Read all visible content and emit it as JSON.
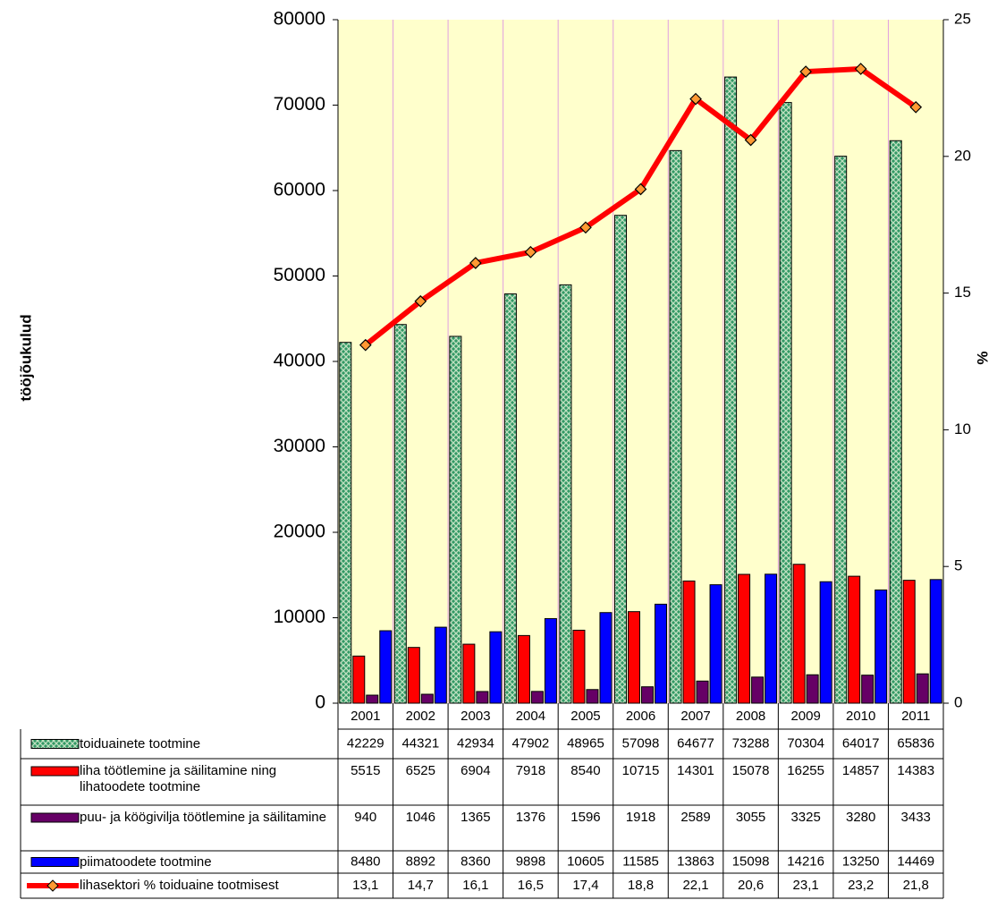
{
  "chart_data": {
    "type": "bar",
    "y_label": "tööjõukulud",
    "y2_label": "%",
    "categories": [
      "2001",
      "2002",
      "2003",
      "2004",
      "2005",
      "2006",
      "2007",
      "2008",
      "2009",
      "2010",
      "2011"
    ],
    "series": [
      {
        "name": "toiduainete tootmine",
        "color": "#339966",
        "values": [
          42229,
          44321,
          42934,
          47902,
          48965,
          57098,
          64677,
          73288,
          70304,
          64017,
          65836
        ]
      },
      {
        "name": "liha töötlemine ja säilitamine ning lihatoodete tootmine",
        "color": "#ff0000",
        "values": [
          5515,
          6525,
          6904,
          7918,
          8540,
          10715,
          14301,
          15078,
          16255,
          14857,
          14383
        ]
      },
      {
        "name": "puu- ja köögivilja töötlemine ja säilitamine",
        "color": "#660066",
        "values": [
          940,
          1046,
          1365,
          1376,
          1596,
          1918,
          2589,
          3055,
          3325,
          3280,
          3433
        ]
      },
      {
        "name": "piimatoodete tootmine",
        "color": "#0000ff",
        "values": [
          8480,
          8892,
          8360,
          9898,
          10605,
          11585,
          13863,
          15098,
          14216,
          13250,
          14469
        ]
      },
      {
        "name": "lihasektori % toiduaine tootmisest",
        "type": "line",
        "axis": "y2",
        "color": "#ff0000",
        "marker_color": "#ff9933",
        "values": [
          13.1,
          14.7,
          16.1,
          16.5,
          17.4,
          18.8,
          22.1,
          20.6,
          23.1,
          23.2,
          21.8
        ],
        "value_labels": [
          "13,1",
          "14,7",
          "16,1",
          "16,5",
          "17,4",
          "18,8",
          "22,1",
          "20,6",
          "23,1",
          "23,2",
          "21,8"
        ]
      }
    ],
    "ylim": [
      0,
      80000
    ],
    "yticks": [
      0,
      10000,
      20000,
      30000,
      40000,
      50000,
      60000,
      70000,
      80000
    ],
    "y2lim": [
      0,
      25
    ],
    "y2ticks": [
      0,
      5,
      10,
      15,
      20,
      25
    ],
    "background": "#ffffcc",
    "grid_color": "#e0a0e0"
  }
}
